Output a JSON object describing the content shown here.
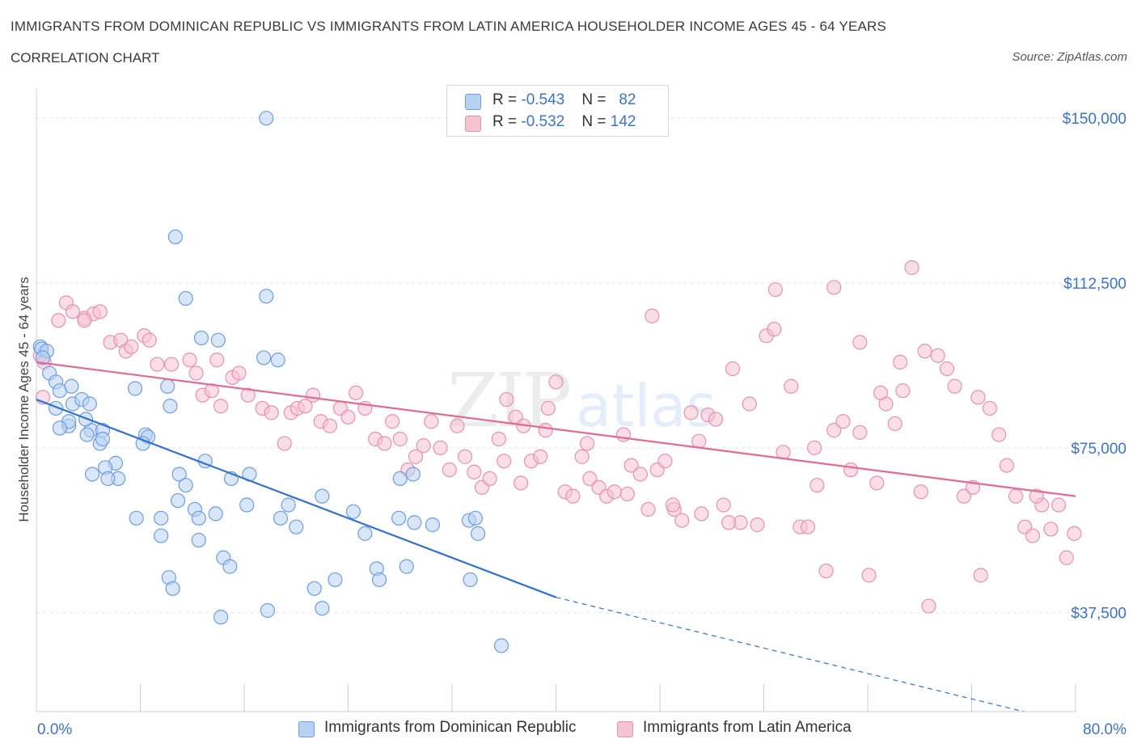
{
  "header": {
    "title": "IMMIGRANTS FROM DOMINICAN REPUBLIC VS IMMIGRANTS FROM LATIN AMERICA HOUSEHOLDER INCOME AGES 45 - 64 YEARS",
    "subtitle": "CORRELATION CHART",
    "source": "Source: ZipAtlas.com"
  },
  "legend": {
    "rows": [
      {
        "r_label": "R = ",
        "r_value": "-0.543",
        "n_label": "N = ",
        "n_value": "82"
      },
      {
        "r_label": "R = ",
        "r_value": "-0.532",
        "n_label": "N = ",
        "n_value": "142"
      }
    ]
  },
  "colors": {
    "blue_fill": "#b8d1f3",
    "blue_stroke": "#6d9de6",
    "blue_line": "#3171d6",
    "pink_fill": "#f6c3d3",
    "pink_stroke": "#e991b0",
    "pink_line": "#e46a95",
    "tick_label": "#3b73d0",
    "grid": "#e2e2e2"
  },
  "chart_data": {
    "type": "scatter",
    "title": "IMMIGRANTS FROM DOMINICAN REPUBLIC VS IMMIGRANTS FROM LATIN AMERICA HOUSEHOLDER INCOME AGES 45 - 64 YEARS",
    "subtitle": "CORRELATION CHART",
    "xlabel": "",
    "ylabel": "Householder Income Ages 45 - 64 years",
    "xlim": [
      0,
      80
    ],
    "ylim": [
      15000,
      155000
    ],
    "x_tick_labels": [
      "0.0%",
      "80.0%"
    ],
    "y_ticks": [
      37500,
      75000,
      112500,
      150000
    ],
    "y_tick_labels": [
      "$37,500",
      "$75,000",
      "$112,500",
      "$150,000"
    ],
    "grid": "horizontal dashed",
    "legend_position": "top-center",
    "watermark": "ZIPatlas",
    "series": [
      {
        "name": "Immigrants from Dominican Republic",
        "color": "#6d9de6",
        "R": -0.543,
        "N": 82,
        "trend": {
          "x0": 0,
          "y0": 86000,
          "x1": 40,
          "y1": 41000,
          "dashed_to_x": 76,
          "dashed_to_y": 15000
        },
        "points": [
          [
            0.3,
            98000
          ],
          [
            0.4,
            97500
          ],
          [
            0.8,
            97000
          ],
          [
            0.5,
            95500
          ],
          [
            1.0,
            92000
          ],
          [
            1.5,
            90000
          ],
          [
            1.8,
            88000
          ],
          [
            2.7,
            89000
          ],
          [
            1.5,
            84000
          ],
          [
            2.8,
            85000
          ],
          [
            3.5,
            86000
          ],
          [
            2.5,
            80000
          ],
          [
            4.1,
            85000
          ],
          [
            2.5,
            81000
          ],
          [
            4.2,
            79000
          ],
          [
            3.8,
            81500
          ],
          [
            1.8,
            79500
          ],
          [
            5.1,
            79000
          ],
          [
            3.9,
            78000
          ],
          [
            4.9,
            76000
          ],
          [
            8.4,
            78000
          ],
          [
            8.6,
            77500
          ],
          [
            5.1,
            77000
          ],
          [
            6.1,
            71500
          ],
          [
            5.3,
            70500
          ],
          [
            4.3,
            69000
          ],
          [
            6.3,
            68000
          ],
          [
            5.5,
            68000
          ],
          [
            8.2,
            76000
          ],
          [
            13.0,
            72000
          ],
          [
            11.0,
            69000
          ],
          [
            11.5,
            66500
          ],
          [
            10.9,
            63000
          ],
          [
            15.0,
            68000
          ],
          [
            16.4,
            69000
          ],
          [
            12.2,
            61000
          ],
          [
            12.5,
            59000
          ],
          [
            13.8,
            60000
          ],
          [
            9.6,
            59000
          ],
          [
            7.7,
            59000
          ],
          [
            16.2,
            62000
          ],
          [
            9.6,
            55000
          ],
          [
            12.5,
            54000
          ],
          [
            14.4,
            50000
          ],
          [
            14.9,
            48000
          ],
          [
            10.2,
            45500
          ],
          [
            10.5,
            43000
          ],
          [
            7.6,
            88500
          ],
          [
            10.3,
            84500
          ],
          [
            12.7,
            100000
          ],
          [
            14.0,
            99500
          ],
          [
            10.1,
            89000
          ],
          [
            11.5,
            109000
          ],
          [
            17.7,
            109500
          ],
          [
            18.6,
            95000
          ],
          [
            17.5,
            95500
          ],
          [
            18.8,
            59000
          ],
          [
            20.0,
            57000
          ],
          [
            19.4,
            62000
          ],
          [
            22.0,
            64000
          ],
          [
            24.4,
            60500
          ],
          [
            25.3,
            55500
          ],
          [
            26.2,
            47500
          ],
          [
            28.5,
            48000
          ],
          [
            29.1,
            58000
          ],
          [
            27.9,
            59000
          ],
          [
            34.0,
            55500
          ],
          [
            33.3,
            58500
          ],
          [
            30.5,
            57500
          ],
          [
            33.8,
            59000
          ],
          [
            21.4,
            43000
          ],
          [
            23.0,
            45000
          ],
          [
            22.0,
            38500
          ],
          [
            17.8,
            38000
          ],
          [
            14.2,
            36500
          ],
          [
            26.4,
            45000
          ],
          [
            33.4,
            45000
          ],
          [
            35.8,
            30000
          ],
          [
            10.7,
            123000
          ],
          [
            17.7,
            150000
          ],
          [
            28.0,
            68000
          ],
          [
            29.0,
            69000
          ]
        ]
      },
      {
        "name": "Immigrants from Latin America",
        "color": "#e991b0",
        "R": -0.532,
        "N": 142,
        "trend": {
          "x0": 0,
          "y0": 94500,
          "x1": 80,
          "y1": 64000
        },
        "points": [
          [
            0.3,
            96000
          ],
          [
            0.6,
            94500
          ],
          [
            0.5,
            86500
          ],
          [
            1.7,
            104000
          ],
          [
            2.3,
            108000
          ],
          [
            2.8,
            106000
          ],
          [
            3.7,
            104500
          ],
          [
            4.4,
            105500
          ],
          [
            4.9,
            106000
          ],
          [
            3.7,
            104000
          ],
          [
            5.7,
            99000
          ],
          [
            6.5,
            99500
          ],
          [
            6.9,
            97000
          ],
          [
            7.3,
            98000
          ],
          [
            8.3,
            100500
          ],
          [
            8.7,
            99500
          ],
          [
            9.3,
            94000
          ],
          [
            10.4,
            94000
          ],
          [
            11.8,
            95000
          ],
          [
            12.3,
            92000
          ],
          [
            12.8,
            87000
          ],
          [
            13.5,
            88000
          ],
          [
            13.9,
            95000
          ],
          [
            14.2,
            84500
          ],
          [
            15.1,
            91000
          ],
          [
            15.6,
            92000
          ],
          [
            16.3,
            87000
          ],
          [
            17.4,
            84000
          ],
          [
            18.1,
            83000
          ],
          [
            19.1,
            76000
          ],
          [
            19.6,
            83000
          ],
          [
            20.1,
            84000
          ],
          [
            20.7,
            84500
          ],
          [
            21.3,
            87000
          ],
          [
            21.9,
            81000
          ],
          [
            22.6,
            80000
          ],
          [
            23.4,
            84000
          ],
          [
            24.0,
            82000
          ],
          [
            24.6,
            87500
          ],
          [
            25.3,
            84000
          ],
          [
            26.1,
            77000
          ],
          [
            26.8,
            76000
          ],
          [
            27.4,
            81000
          ],
          [
            28.0,
            77000
          ],
          [
            28.6,
            70000
          ],
          [
            29.2,
            73000
          ],
          [
            29.8,
            75500
          ],
          [
            30.4,
            81000
          ],
          [
            31.1,
            75000
          ],
          [
            31.8,
            70000
          ],
          [
            32.4,
            80000
          ],
          [
            33.0,
            73000
          ],
          [
            33.7,
            69500
          ],
          [
            34.3,
            66000
          ],
          [
            34.9,
            68000
          ],
          [
            35.6,
            77000
          ],
          [
            36.2,
            86000
          ],
          [
            36.9,
            82000
          ],
          [
            37.5,
            80000
          ],
          [
            38.1,
            72000
          ],
          [
            38.8,
            73000
          ],
          [
            39.4,
            84000
          ],
          [
            40.0,
            90000
          ],
          [
            40.7,
            65000
          ],
          [
            41.3,
            64000
          ],
          [
            42.0,
            73000
          ],
          [
            42.6,
            68000
          ],
          [
            43.3,
            66000
          ],
          [
            43.9,
            64000
          ],
          [
            44.5,
            65000
          ],
          [
            45.2,
            78000
          ],
          [
            45.8,
            71000
          ],
          [
            46.5,
            69000
          ],
          [
            47.1,
            61000
          ],
          [
            47.8,
            70000
          ],
          [
            48.4,
            72000
          ],
          [
            49.1,
            61000
          ],
          [
            49.7,
            58500
          ],
          [
            50.4,
            83000
          ],
          [
            51.0,
            76500
          ],
          [
            51.7,
            82500
          ],
          [
            52.3,
            81500
          ],
          [
            52.9,
            62000
          ],
          [
            53.6,
            93000
          ],
          [
            54.2,
            58000
          ],
          [
            54.9,
            85000
          ],
          [
            55.5,
            57500
          ],
          [
            56.2,
            100500
          ],
          [
            56.8,
            102000
          ],
          [
            57.5,
            74000
          ],
          [
            58.1,
            89000
          ],
          [
            58.8,
            57000
          ],
          [
            59.4,
            57000
          ],
          [
            60.1,
            66500
          ],
          [
            60.8,
            47000
          ],
          [
            61.4,
            79000
          ],
          [
            62.1,
            81000
          ],
          [
            62.7,
            70000
          ],
          [
            63.4,
            78500
          ],
          [
            64.1,
            46000
          ],
          [
            64.7,
            67000
          ],
          [
            65.4,
            85000
          ],
          [
            66.1,
            80500
          ],
          [
            66.7,
            88000
          ],
          [
            67.4,
            116000
          ],
          [
            68.1,
            65000
          ],
          [
            68.7,
            39000
          ],
          [
            69.4,
            96000
          ],
          [
            70.1,
            93000
          ],
          [
            70.7,
            89000
          ],
          [
            71.4,
            64000
          ],
          [
            72.1,
            66000
          ],
          [
            72.7,
            46000
          ],
          [
            73.4,
            84000
          ],
          [
            74.1,
            78000
          ],
          [
            74.7,
            71000
          ],
          [
            75.4,
            64000
          ],
          [
            76.1,
            57000
          ],
          [
            76.7,
            55000
          ],
          [
            77.4,
            62000
          ],
          [
            78.1,
            56500
          ],
          [
            78.7,
            62000
          ],
          [
            79.3,
            50000
          ],
          [
            79.9,
            55500
          ],
          [
            56.9,
            111000
          ],
          [
            61.4,
            111500
          ],
          [
            63.4,
            99000
          ],
          [
            65.0,
            87500
          ],
          [
            47.4,
            105000
          ],
          [
            49.0,
            62000
          ],
          [
            51.2,
            60000
          ],
          [
            53.3,
            58000
          ],
          [
            42.4,
            76000
          ],
          [
            39.2,
            79000
          ],
          [
            37.3,
            67000
          ],
          [
            36.0,
            72000
          ],
          [
            45.5,
            64500
          ],
          [
            68.4,
            97000
          ],
          [
            72.5,
            86500
          ],
          [
            66.5,
            94500
          ],
          [
            77.0,
            64000
          ],
          [
            59.9,
            75000
          ]
        ]
      }
    ]
  }
}
